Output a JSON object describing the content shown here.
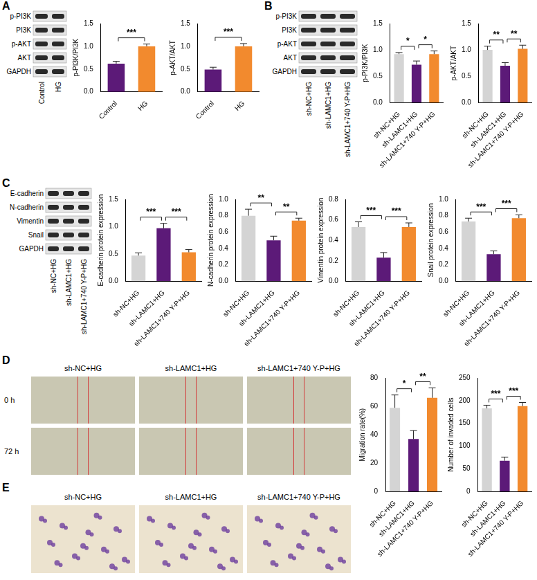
{
  "panels": [
    {
      "letter": "A",
      "blot": {
        "rows": [
          "p-PI3K",
          "PI3K",
          "p-AKT",
          "AKT",
          "GAPDH"
        ],
        "lanes": [
          "Control",
          "HG"
        ]
      }
    },
    {
      "letter": "B",
      "blot": {
        "rows": [
          "p-PI3K",
          "PI3K",
          "p-AKT",
          "AKT",
          "GAPDH"
        ],
        "lanes": [
          "sh-NC+HG",
          "sh-LAMC1+HG",
          "sh-LAMC1+740 Y-P+HG"
        ]
      }
    },
    {
      "letter": "C",
      "blot": {
        "rows": [
          "E-cadherin",
          "N-cadherin",
          "Vimentin",
          "Snail",
          "GAPDH"
        ],
        "lanes": [
          "sh-NC+HG",
          "sh-LAMC1+HG",
          "sh-LAMC1+740 Y-P+HG"
        ]
      }
    },
    {
      "letter": "D",
      "images": {
        "columns": [
          "sh-NC+HG",
          "sh-LAMC1+HG",
          "sh-LAMC1+740 Y-P+HG"
        ],
        "rows": [
          "0 h",
          "72 h"
        ]
      }
    },
    {
      "letter": "E",
      "images": {
        "columns": [
          "sh-NC+HG",
          "sh-LAMC1+HG",
          "sh-LAMC1+740 Y-P+HG"
        ]
      }
    }
  ],
  "chart_data": [
    {
      "type": "bar",
      "ylabel": "p-PI3K/PI3K",
      "categories": [
        "Control",
        "HG"
      ],
      "values": [
        0.62,
        1.0
      ],
      "errors": [
        0.05,
        0.05
      ],
      "colors": [
        "#5c1a78",
        "#f28a2e"
      ],
      "ylim": [
        0,
        1.5
      ],
      "yticks": [
        {
          "value": 0,
          "label": "0.0"
        },
        0.5,
        {
          "value": 1,
          "label": "1.0"
        },
        1.5
      ],
      "grid": false,
      "significance": [
        {
          "from": 0,
          "to": 1,
          "label": "***"
        }
      ]
    },
    {
      "type": "bar",
      "ylabel": "p-AKT/AKT",
      "categories": [
        "Control",
        "HG"
      ],
      "values": [
        0.49,
        1.0
      ],
      "errors": [
        0.05,
        0.06
      ],
      "colors": [
        "#5c1a78",
        "#f28a2e"
      ],
      "ylim": [
        0,
        1.5
      ],
      "yticks": [
        {
          "value": 0,
          "label": "0.0"
        },
        0.5,
        {
          "value": 1,
          "label": "1.0"
        },
        1.5
      ],
      "grid": false,
      "significance": [
        {
          "from": 0,
          "to": 1,
          "label": "***"
        }
      ]
    },
    {
      "type": "bar",
      "ylabel": "p-PI3K/PI3K",
      "categories": [
        "sh-NC+HG",
        "sh-LAMC1+HG",
        "sh-LAMC1+740 Y-P+HG"
      ],
      "values": [
        0.92,
        0.72,
        0.92
      ],
      "errors": [
        0.03,
        0.07,
        0.06
      ],
      "colors": [
        "#d4d4d4",
        "#5c1a78",
        "#f28a2e"
      ],
      "ylim": [
        0,
        1.5
      ],
      "yticks": [
        {
          "value": 0,
          "label": "0.0"
        },
        0.5,
        {
          "value": 1,
          "label": "1.0"
        },
        1.5
      ],
      "grid": false,
      "significance": [
        {
          "from": 0,
          "to": 1,
          "label": "*"
        },
        {
          "from": 1,
          "to": 2,
          "label": "*"
        }
      ]
    },
    {
      "type": "bar",
      "ylabel": "p-AKT/AKT",
      "categories": [
        "sh-NC+HG",
        "sh-LAMC1+HG",
        "sh-LAMC1+740 Y-P+HG"
      ],
      "values": [
        1.0,
        0.7,
        1.02
      ],
      "errors": [
        0.07,
        0.06,
        0.07
      ],
      "colors": [
        "#d4d4d4",
        "#5c1a78",
        "#f28a2e"
      ],
      "ylim": [
        0,
        1.5
      ],
      "yticks": [
        {
          "value": 0,
          "label": "0.0"
        },
        0.5,
        {
          "value": 1,
          "label": "1.0"
        },
        1.5
      ],
      "grid": false,
      "significance": [
        {
          "from": 0,
          "to": 1,
          "label": "**"
        },
        {
          "from": 1,
          "to": 2,
          "label": "**"
        }
      ]
    },
    {
      "type": "bar",
      "ylabel": "E-cadherin protein expression",
      "categories": [
        "sh-NC+HG",
        "sh-LAMC1+HG",
        "sh-LAMC1+740 Y-P+HG"
      ],
      "values": [
        0.47,
        0.97,
        0.53
      ],
      "errors": [
        0.05,
        0.09,
        0.05
      ],
      "colors": [
        "#d4d4d4",
        "#5c1a78",
        "#f28a2e"
      ],
      "ylim": [
        0,
        1.5
      ],
      "yticks": [
        {
          "value": 0,
          "label": "0.0"
        },
        0.5,
        {
          "value": 1,
          "label": "1.0"
        },
        1.5
      ],
      "grid": false,
      "significance": [
        {
          "from": 0,
          "to": 1,
          "label": "***"
        },
        {
          "from": 1,
          "to": 2,
          "label": "***"
        }
      ]
    },
    {
      "type": "bar",
      "ylabel": "N-cadherin protein expression",
      "categories": [
        "sh-NC+HG",
        "sh-LAMC1+HG",
        "sh-LAMC1+740 Y-P+HG"
      ],
      "values": [
        0.8,
        0.5,
        0.74
      ],
      "errors": [
        0.08,
        0.05,
        0.03
      ],
      "colors": [
        "#d4d4d4",
        "#5c1a78",
        "#f28a2e"
      ],
      "ylim": [
        0,
        1
      ],
      "yticks": [
        {
          "value": 0,
          "label": "0.0"
        },
        0.2,
        0.4,
        0.6,
        0.8,
        {
          "value": 1,
          "label": "1.0"
        }
      ],
      "grid": false,
      "significance": [
        {
          "from": 0,
          "to": 1,
          "label": "**"
        },
        {
          "from": 1,
          "to": 2,
          "label": "**"
        }
      ]
    },
    {
      "type": "bar",
      "ylabel": "Vimentin protein expression",
      "categories": [
        "sh-NC+HG",
        "sh-LAMC1+HG",
        "sh-LAMC1+740 Y-P+HG"
      ],
      "values": [
        0.53,
        0.23,
        0.53
      ],
      "errors": [
        0.05,
        0.05,
        0.04
      ],
      "colors": [
        "#d4d4d4",
        "#5c1a78",
        "#f28a2e"
      ],
      "ylim": [
        0,
        0.8
      ],
      "yticks": [
        {
          "value": 0,
          "label": "0.0"
        },
        0.2,
        0.4,
        0.6,
        0.8
      ],
      "grid": false,
      "significance": [
        {
          "from": 0,
          "to": 1,
          "label": "***"
        },
        {
          "from": 1,
          "to": 2,
          "label": "***"
        }
      ]
    },
    {
      "type": "bar",
      "ylabel": "Snail protein expression",
      "categories": [
        "sh-NC+HG",
        "sh-LAMC1+HG",
        "sh-LAMC1+740 Y-P+HG"
      ],
      "values": [
        0.73,
        0.33,
        0.77
      ],
      "errors": [
        0.04,
        0.04,
        0.04
      ],
      "colors": [
        "#d4d4d4",
        "#5c1a78",
        "#f28a2e"
      ],
      "ylim": [
        0,
        1
      ],
      "yticks": [
        {
          "value": 0,
          "label": "0.0"
        },
        0.2,
        0.4,
        0.6,
        0.8,
        {
          "value": 1,
          "label": "1.0"
        }
      ],
      "grid": false,
      "significance": [
        {
          "from": 0,
          "to": 1,
          "label": "***"
        },
        {
          "from": 1,
          "to": 2,
          "label": "***"
        }
      ]
    },
    {
      "type": "bar",
      "ylabel": "Migration rate(%)",
      "categories": [
        "sh-NC+HG",
        "sh-LAMC1+HG",
        "sh-LAMC1+740 Y-P+HG"
      ],
      "values": [
        59,
        37,
        66
      ],
      "errors": [
        9,
        6,
        7
      ],
      "colors": [
        "#d4d4d4",
        "#5c1a78",
        "#f28a2e"
      ],
      "ylim": [
        0,
        80
      ],
      "yticks": [
        0,
        20,
        40,
        60,
        80
      ],
      "grid": false,
      "significance": [
        {
          "from": 0,
          "to": 1,
          "label": "*"
        },
        {
          "from": 1,
          "to": 2,
          "label": "**"
        }
      ]
    },
    {
      "type": "bar",
      "ylabel": "Number of invaded cells",
      "categories": [
        "sh-NC+HG",
        "sh-LAMC1+HG",
        "sh-LAMC1+740 Y-P+HG"
      ],
      "values": [
        183,
        68,
        188
      ],
      "errors": [
        7,
        8,
        8
      ],
      "colors": [
        "#d4d4d4",
        "#5c1a78",
        "#f28a2e"
      ],
      "ylim": [
        0,
        250
      ],
      "yticks": [
        0,
        50,
        100,
        150,
        200,
        250
      ],
      "grid": false,
      "significance": [
        {
          "from": 0,
          "to": 1,
          "label": "***"
        },
        {
          "from": 1,
          "to": 2,
          "label": "***"
        }
      ]
    }
  ]
}
